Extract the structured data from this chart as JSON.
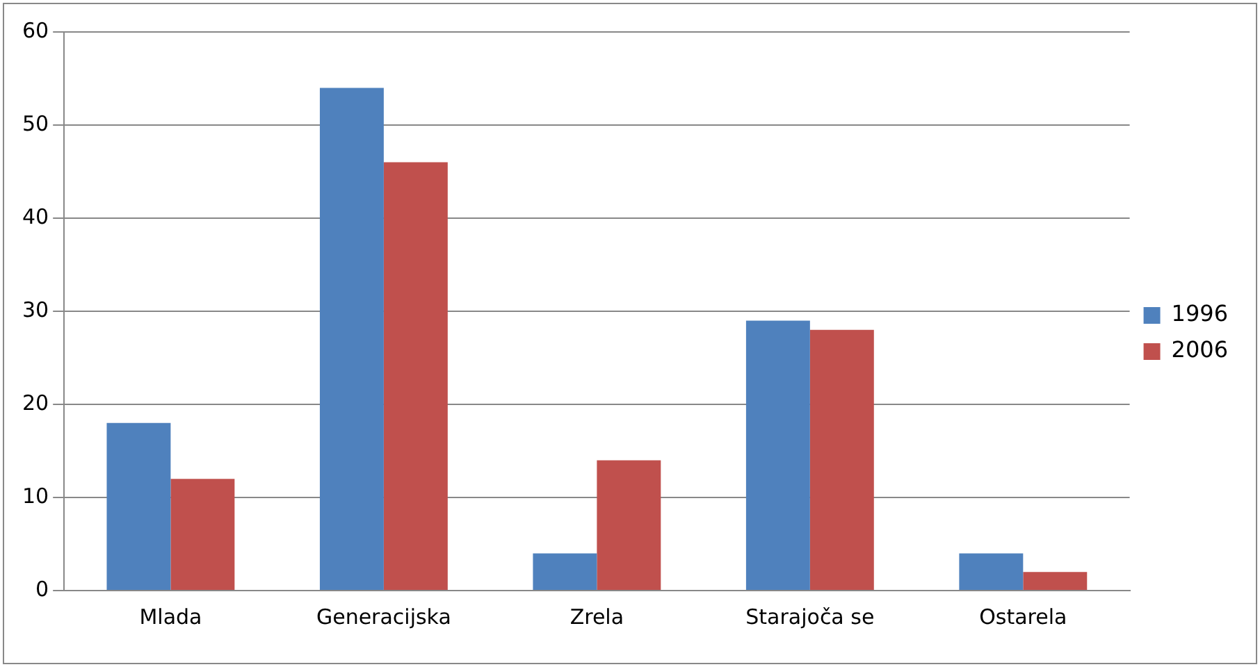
{
  "chart_data": {
    "type": "bar",
    "categories": [
      "Mlada",
      "Generacijska",
      "Zrela",
      "Starajoča se",
      "Ostarela"
    ],
    "series": [
      {
        "name": "1996",
        "color": "#4f81bd",
        "values": [
          18,
          54,
          4,
          29,
          4
        ]
      },
      {
        "name": "2006",
        "color": "#c0504d",
        "values": [
          12,
          46,
          14,
          28,
          2
        ]
      }
    ],
    "ylim": [
      0,
      60
    ],
    "yticks": [
      0,
      10,
      20,
      30,
      40,
      50,
      60
    ],
    "grid": "y",
    "legend": "right"
  }
}
